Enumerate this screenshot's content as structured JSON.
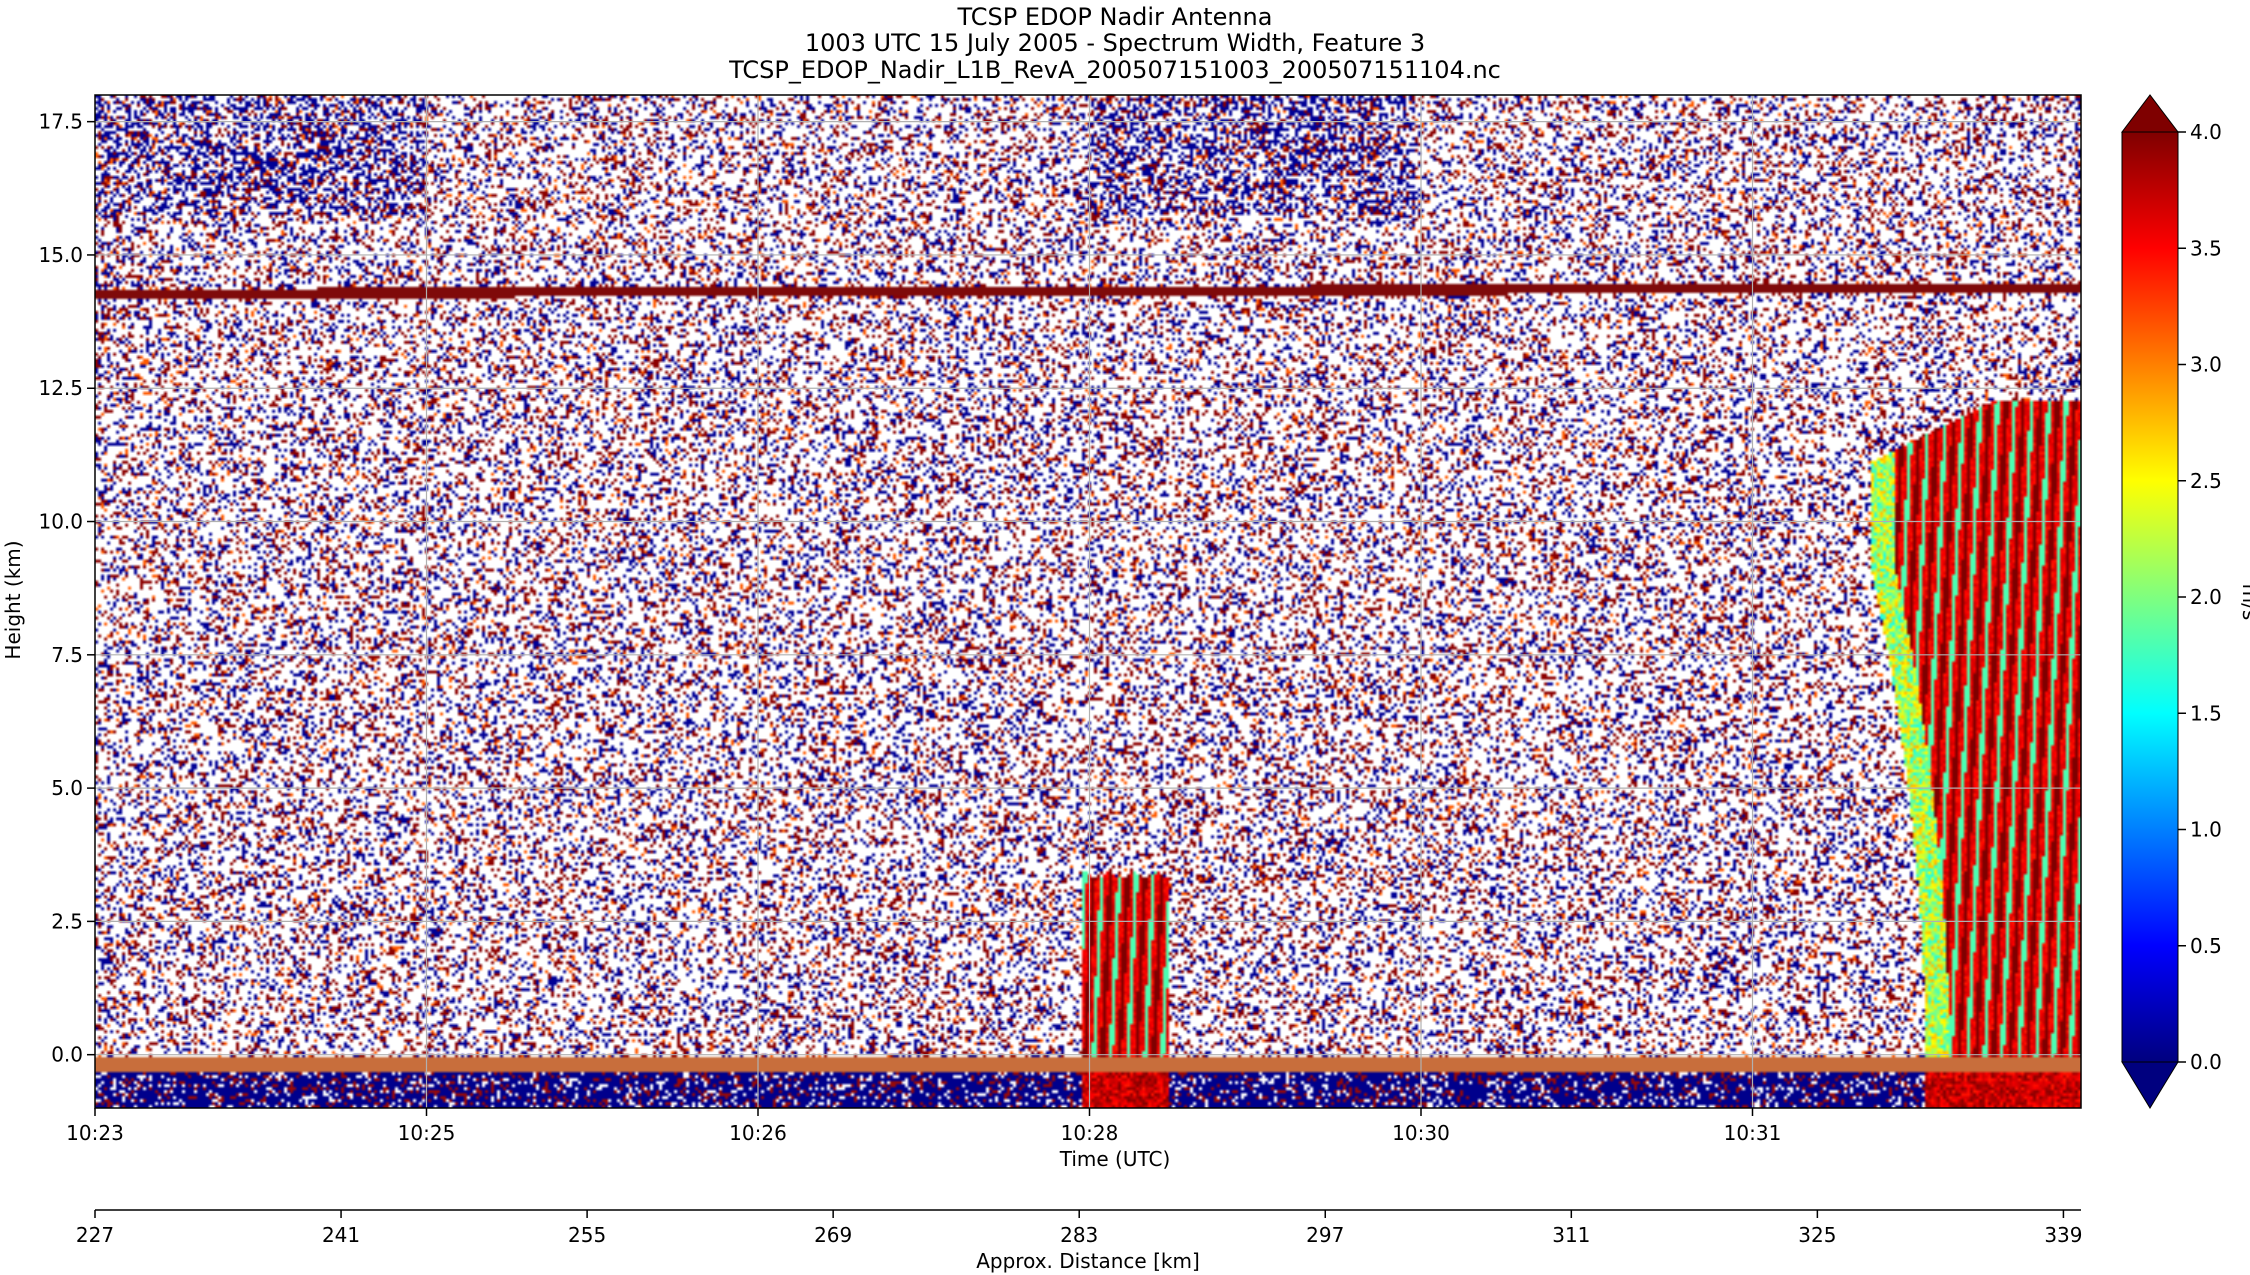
{
  "chart_data": {
    "type": "heatmap",
    "title_lines": [
      "TCSP EDOP Nadir Antenna",
      "1003 UTC 15 July 2005 - Spectrum Width, Feature 3",
      "TCSP_EDOP_Nadir_L1B_RevA_200507151003_200507151104.nc"
    ],
    "xlabel": "Time (UTC)",
    "ylabel": "Height (km)",
    "x2label": "Approx. Distance [km]",
    "colorbar_label": "m/s",
    "x_ticks": [
      "10:23",
      "10:25",
      "10:26",
      "10:28",
      "10:30",
      "10:31"
    ],
    "y_ticks": [
      "0.0",
      "2.5",
      "5.0",
      "7.5",
      "10.0",
      "12.5",
      "15.0",
      "17.5"
    ],
    "y_tick_values": [
      0.0,
      2.5,
      5.0,
      7.5,
      10.0,
      12.5,
      15.0,
      17.5
    ],
    "ylim": [
      -1.0,
      18.0
    ],
    "distance_ticks": [
      "227",
      "241",
      "255",
      "269",
      "283",
      "297",
      "311",
      "325",
      "339"
    ],
    "distance_tick_values": [
      227,
      241,
      255,
      269,
      283,
      297,
      311,
      325,
      339
    ],
    "distance_range": [
      227,
      340
    ],
    "colorbar_ticks": [
      "0.0",
      "0.5",
      "1.0",
      "1.5",
      "2.0",
      "2.5",
      "3.0",
      "3.5",
      "4.0"
    ],
    "colorbar_tick_values": [
      0.0,
      0.5,
      1.0,
      1.5,
      2.0,
      2.5,
      3.0,
      3.5,
      4.0
    ],
    "clim": [
      0.0,
      4.0
    ],
    "colormap": "jet",
    "grid": true,
    "features": {
      "tropopause_echo_height_km": 14.3,
      "surface_height_km": 0.0,
      "cell_1": {
        "distance_km": [
          283,
          288
        ],
        "top_km": 3.5
      },
      "cell_2": {
        "distance_km": [
          328,
          340
        ],
        "top_km": 12.5
      }
    }
  }
}
